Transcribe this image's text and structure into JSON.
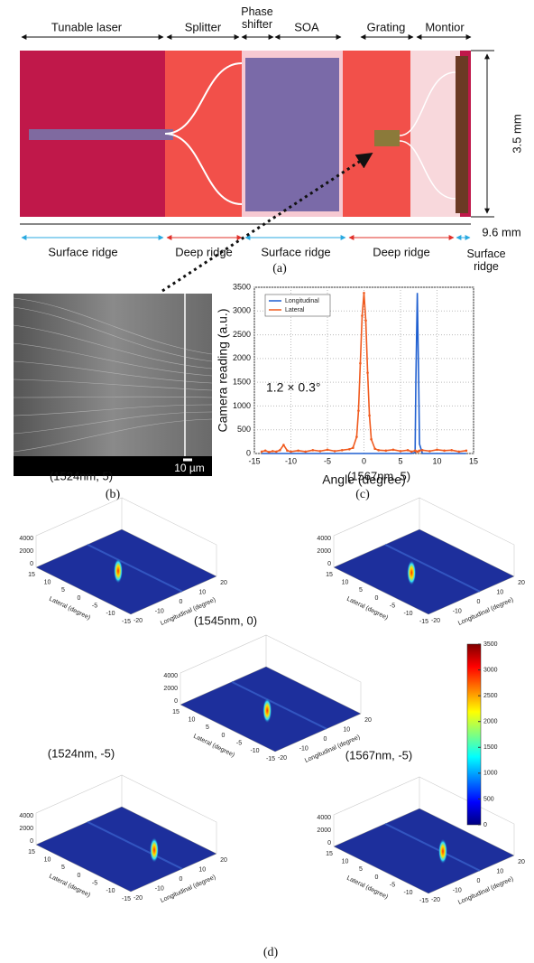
{
  "panel_a": {
    "top_labels": [
      "Tunable laser",
      "Splitter",
      "Phase shifter",
      "SOA",
      "Grating",
      "Montior"
    ],
    "height_label": "3.5 mm",
    "width_label": "9.6 mm",
    "bottom_labels": [
      "Surface ridge",
      "Deep ridge",
      "Surface ridge",
      "Deep ridge",
      "Surface ridge"
    ],
    "caption": "(a)"
  },
  "panel_b": {
    "scale_label": "10 µm",
    "caption": "(b)"
  },
  "chart_data": {
    "type": "line",
    "xlabel": "Angle (degree)",
    "ylabel": "Camera reading  (a.u.)",
    "annotation": "1.2 × 0.3°",
    "caption": "(c)",
    "x": [
      -14,
      -13.5,
      -13,
      -12.5,
      -12,
      -11.5,
      -11,
      -10.5,
      -10,
      -9,
      -8,
      -7,
      -6,
      -5,
      -4,
      -3,
      -2,
      -1.5,
      -1,
      -0.75,
      -0.5,
      -0.25,
      0,
      0.25,
      0.5,
      0.75,
      1,
      1.5,
      2,
      3,
      4,
      5,
      6,
      6.5,
      7,
      7.1,
      7.3,
      7.5,
      7.6,
      8,
      9,
      10,
      11,
      12,
      13,
      14
    ],
    "series": [
      {
        "name": "Longitudinal",
        "color": "#1f5fd0",
        "values": [
          0,
          0,
          0,
          0,
          0,
          0,
          0,
          0,
          0,
          0,
          0,
          0,
          0,
          0,
          0,
          0,
          0,
          0,
          0,
          0,
          0,
          0,
          0,
          0,
          0,
          0,
          0,
          0,
          0,
          0,
          0,
          0,
          0,
          0,
          20,
          1500,
          3380,
          1400,
          200,
          0,
          0,
          0,
          0,
          0,
          0,
          0
        ]
      },
      {
        "name": "Lateral",
        "color": "#f05a1e",
        "values": [
          40,
          60,
          30,
          50,
          40,
          70,
          180,
          60,
          40,
          60,
          40,
          70,
          50,
          80,
          50,
          70,
          90,
          120,
          350,
          900,
          1900,
          2900,
          3380,
          2800,
          1700,
          800,
          300,
          100,
          70,
          60,
          80,
          50,
          70,
          40,
          60,
          50,
          40,
          50,
          60,
          70,
          50,
          80,
          60,
          70,
          40,
          60
        ]
      }
    ],
    "xlim": [
      -15,
      15
    ],
    "ylim": [
      0,
      3500
    ],
    "xticks": [
      -15,
      -10,
      -5,
      0,
      5,
      10,
      15
    ],
    "yticks": [
      0,
      500,
      1000,
      1500,
      2000,
      2500,
      3000,
      3500
    ],
    "grid": true,
    "legend": "upper left"
  },
  "panel_d": {
    "plots": [
      {
        "title": "(1524nm, 5)"
      },
      {
        "title": "(1567nm, 5)"
      },
      {
        "title": "(1545nm, 0)"
      },
      {
        "title": "(1524nm, -5)"
      },
      {
        "title": "(1567nm, -5)"
      }
    ],
    "zticks": [
      0,
      2000,
      4000
    ],
    "lateral_ticks": [
      15,
      10,
      5,
      0,
      -5,
      -10,
      -15
    ],
    "longitudinal_ticks": [
      -20,
      -10,
      0,
      10,
      20
    ],
    "lateral_label": "Lateral (degree)",
    "longitudinal_label": "Longitudinal (degree)",
    "colorbar_ticks": [
      0,
      500,
      1000,
      1500,
      2000,
      2500,
      3000,
      3500
    ],
    "caption": "(d)"
  }
}
